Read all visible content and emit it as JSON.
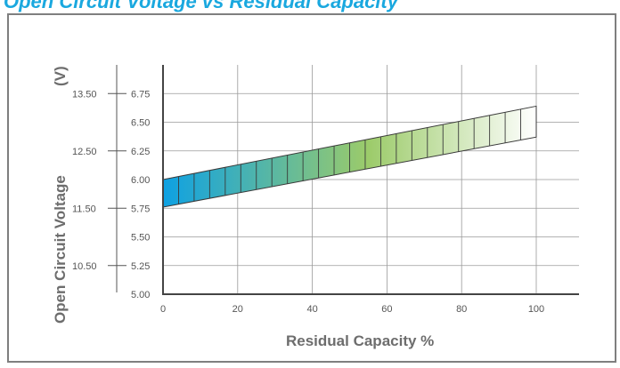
{
  "chart_data": {
    "type": "area",
    "title": "Open Circuit Voltage vs Residual Capacity",
    "xlabel": "Residual Capacity %",
    "ylabel": "Open Circuit Voltage",
    "ylabel_unit": "(V)",
    "xlim": [
      0,
      110
    ],
    "ylim": [
      5.0,
      7.0
    ],
    "x_ticks": [
      "0",
      "20",
      "40",
      "60",
      "80",
      "100"
    ],
    "y_ticks_inner": [
      "5.00",
      "5.25",
      "5.50",
      "5.75",
      "6.00",
      "6.25",
      "6.50",
      "6.75"
    ],
    "y_ticks_outer": [
      "10.50",
      "11.50",
      "12.50",
      "13.50"
    ],
    "grid": true,
    "band": {
      "x": [
        0,
        100
      ],
      "upper": [
        6.0,
        6.64
      ],
      "lower": [
        5.76,
        6.37
      ]
    },
    "band_segments": 24,
    "colors": {
      "start": "#0ea1e3",
      "middle": "#9ccb6a",
      "end": "#ffffff",
      "accent": "#1aa8df"
    }
  }
}
